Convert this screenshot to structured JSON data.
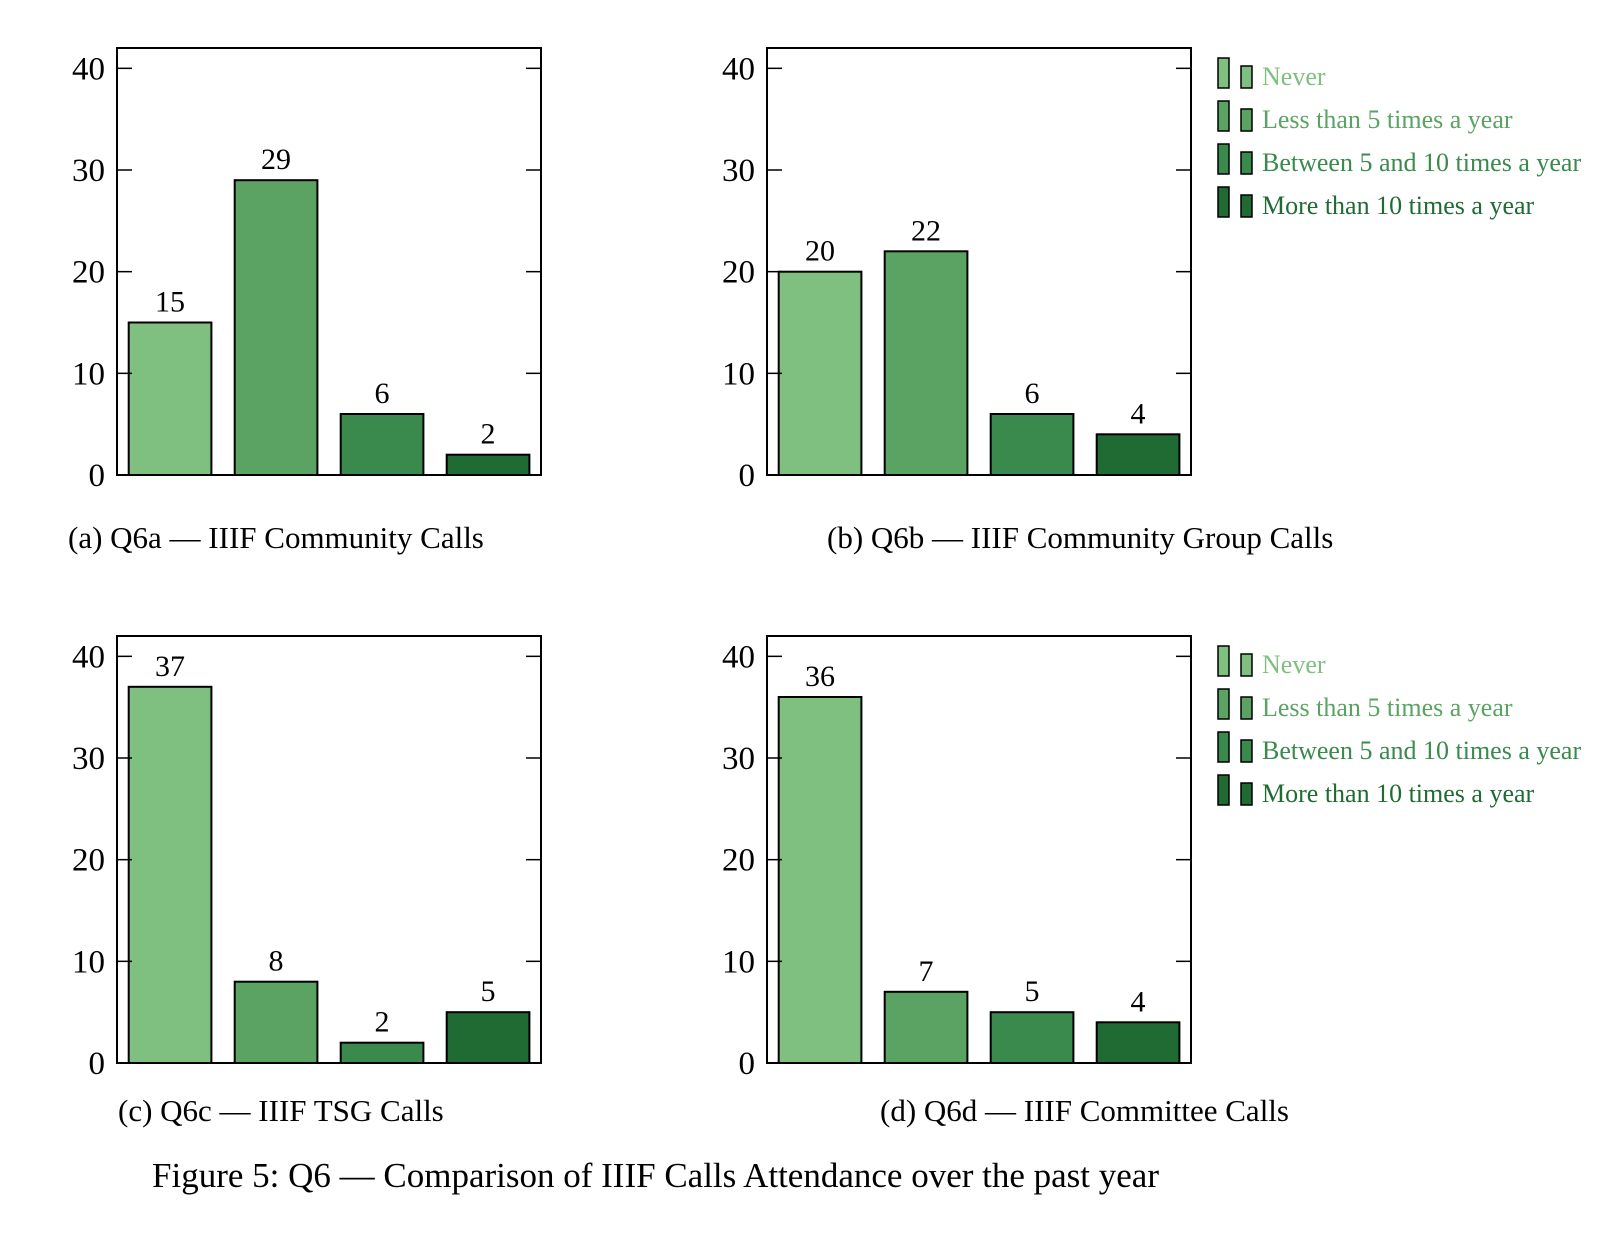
{
  "figure_caption": "Figure 5: Q6 — Comparison of IIIF Calls Attendance over the past year",
  "colors": {
    "never": "#7fbf7f",
    "less5": "#5aa363",
    "between": "#3a8a4d",
    "more10": "#1f6b33",
    "legend_text": [
      "#7fbf7f",
      "#5aa363",
      "#3a8a4d",
      "#1f6b33"
    ]
  },
  "chart_data": [
    {
      "type": "bar",
      "subcaption": "(a) Q6a — IIIF Community Calls",
      "categories": [
        "Never",
        "Less than 5 times a year",
        "Between 5 and 10 times a year",
        "More than 10 times a year"
      ],
      "values": [
        15,
        29,
        6,
        2
      ],
      "ylim": [
        0,
        42
      ],
      "yticks": [
        0,
        10,
        20,
        30,
        40
      ],
      "data_labels": true,
      "legend": false
    },
    {
      "type": "bar",
      "subcaption": "(b) Q6b — IIIF Community Group Calls",
      "categories": [
        "Never",
        "Less than 5 times a year",
        "Between 5 and 10 times a year",
        "More than 10 times a year"
      ],
      "values": [
        20,
        22,
        6,
        4
      ],
      "ylim": [
        0,
        42
      ],
      "yticks": [
        0,
        10,
        20,
        30,
        40
      ],
      "data_labels": true,
      "legend": true,
      "legend_position": "outer right, top"
    },
    {
      "type": "bar",
      "subcaption": "(c) Q6c — IIIF TSG Calls",
      "categories": [
        "Never",
        "Less than 5 times a year",
        "Between 5 and 10 times a year",
        "More than 10 times a year"
      ],
      "values": [
        37,
        8,
        2,
        5
      ],
      "ylim": [
        0,
        42
      ],
      "yticks": [
        0,
        10,
        20,
        30,
        40
      ],
      "data_labels": true,
      "legend": false
    },
    {
      "type": "bar",
      "subcaption": "(d) Q6d — IIIF Committee Calls",
      "categories": [
        "Never",
        "Less than 5 times a year",
        "Between 5 and 10 times a year",
        "More than 10 times a year"
      ],
      "values": [
        36,
        7,
        5,
        4
      ],
      "ylim": [
        0,
        42
      ],
      "yticks": [
        0,
        10,
        20,
        30,
        40
      ],
      "data_labels": true,
      "legend": true,
      "legend_position": "outer right, top"
    }
  ]
}
